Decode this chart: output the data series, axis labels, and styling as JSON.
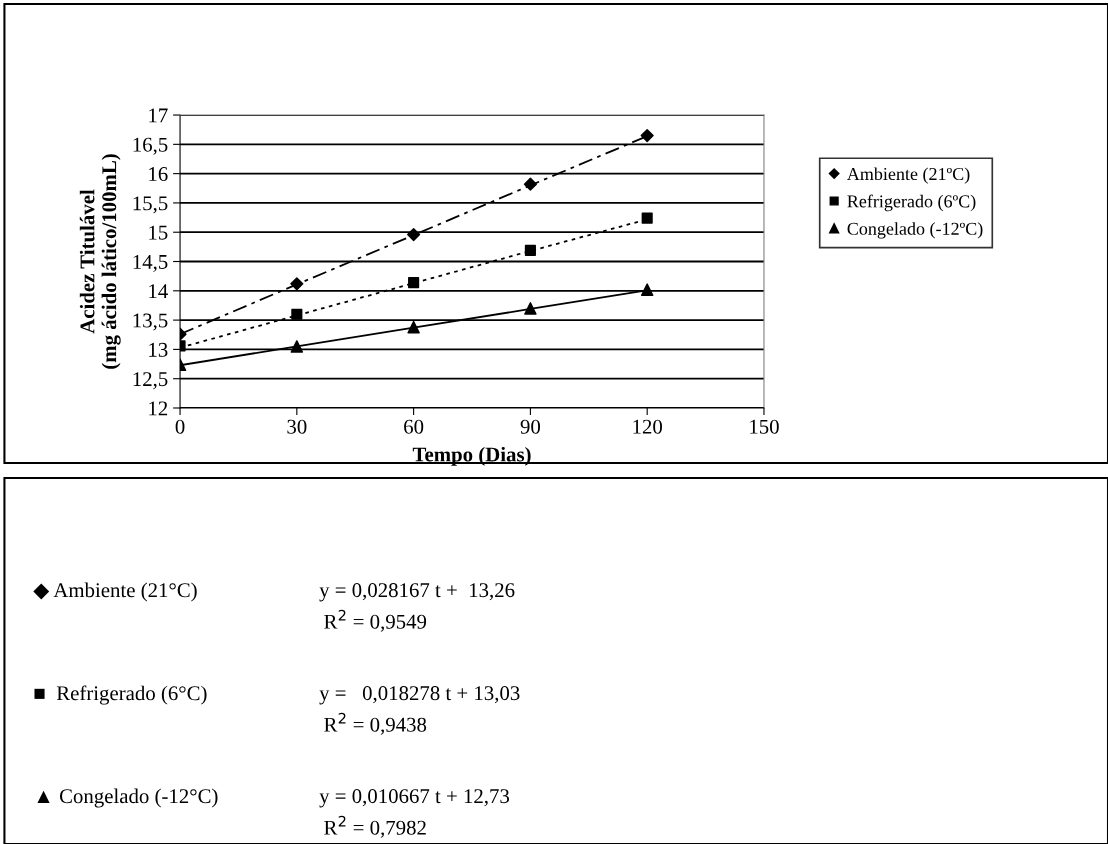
{
  "chart_data": {
    "type": "scatter",
    "xlabel": "Tempo (Dias)",
    "ylabel": "Acidez Titulável\n(mg ácido lático/100mL)",
    "x": [
      0,
      30,
      60,
      90,
      120
    ],
    "series": [
      {
        "name": "Ambiente (21ºC)",
        "color": "#000000",
        "marker": "diamond",
        "values": [
          13.26,
          14.12,
          14.96,
          15.82,
          16.65
        ]
      },
      {
        "name": "Refrigerado (6ºC)",
        "color": "#000000",
        "marker": "square",
        "values": [
          13.06,
          13.6,
          14.14,
          14.69,
          15.24
        ]
      },
      {
        "name": "Congelado (-12ºC)",
        "color": "#000000",
        "marker": "triangle",
        "values": [
          12.74,
          13.05,
          13.38,
          13.7,
          14.02
        ]
      },
      {
        "type": "line",
        "color": "#000000",
        "line_style": "dashed",
        "marker": "none",
        "values": [
          13.26,
          14.11,
          14.95,
          15.8,
          16.64
        ]
      },
      {
        "type": "line",
        "color": "#000000",
        "line_style": "dotted",
        "marker": "none",
        "values": [
          13.03,
          13.58,
          14.13,
          14.68,
          15.22
        ]
      },
      {
        "type": "line",
        "color": "#000000",
        "line_style": "solid",
        "marker": "none",
        "values": [
          12.73,
          13.05,
          13.37,
          13.69,
          14.01
        ]
      }
    ],
    "xlim": [
      0,
      150
    ],
    "xticks": [
      0,
      30,
      60,
      90,
      120,
      150
    ],
    "ylim": [
      12,
      17
    ],
    "yticks": [
      12,
      {
        "value": 12.5,
        "label": "12,5"
      },
      13,
      {
        "value": 13.5,
        "label": "13,5"
      },
      14,
      {
        "value": 14.5,
        "label": "14,5"
      },
      15,
      {
        "value": 15.5,
        "label": "15,5"
      },
      16,
      {
        "value": 16.5,
        "label": "16,5"
      },
      17
    ],
    "grid": "y",
    "legend": "right",
    "annotations": [
      "◆ Ambiente (21°C)",
      "y = 0,028167 t +  13,26",
      "R$^{2}$ = 0,9549",
      "■  Refrigerado (6°C)",
      "y =   0,018278 t + 13,03",
      "R$^{2}$ = 0,9438",
      "▲ Congelado (-12°C)",
      "y = 0,010667 t + 12,73",
      "R$^{2}$ = 0,7982"
    ]
  }
}
